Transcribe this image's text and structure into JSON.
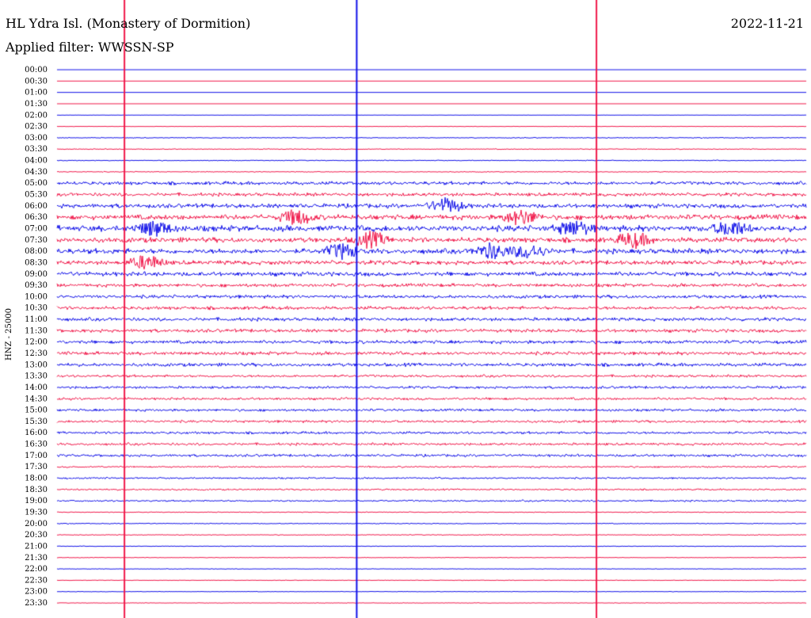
{
  "header": {
    "station": "HL Ydra Isl. (Monastery of Dormition)",
    "date": "2022-11-21",
    "filter": "Applied filter: WWSSN-SP"
  },
  "chart_data": {
    "type": "helicorder",
    "ylabel": "HNZ - 25000",
    "rows": [
      "00:00",
      "00:30",
      "01:00",
      "01:30",
      "02:00",
      "02:30",
      "03:00",
      "03:30",
      "04:00",
      "04:30",
      "05:00",
      "05:30",
      "06:00",
      "06:30",
      "07:00",
      "07:30",
      "08:00",
      "08:30",
      "09:00",
      "09:30",
      "10:00",
      "10:30",
      "11:00",
      "11:30",
      "12:00",
      "12:30",
      "13:00",
      "13:30",
      "14:00",
      "14:30",
      "15:00",
      "15:30",
      "16:00",
      "16:30",
      "17:00",
      "17:30",
      "18:00",
      "18:30",
      "19:00",
      "19:30",
      "20:00",
      "20:30",
      "21:00",
      "21:30",
      "22:00",
      "22:30",
      "23:00",
      "23:30"
    ],
    "colors": [
      "#1010e8",
      "#f0184a"
    ],
    "noise_level": [
      0,
      0,
      0,
      0,
      0.3,
      0.5,
      1,
      1,
      1,
      1,
      4,
      4,
      5,
      6,
      7,
      6,
      6,
      5,
      5,
      4,
      4,
      4,
      4,
      4,
      4,
      4,
      4,
      3,
      3,
      3,
      3,
      3,
      3,
      3,
      3,
      2,
      2,
      2,
      2,
      1,
      1,
      1,
      0.7,
      0.7,
      0.6,
      0.6,
      0.6,
      0.6
    ],
    "events": [
      {
        "row": 13,
        "x": 0.32
      },
      {
        "row": 14,
        "x": 0.13
      },
      {
        "row": 15,
        "x": 0.42
      },
      {
        "row": 16,
        "x": 0.58
      },
      {
        "row": 16,
        "x": 0.38
      },
      {
        "row": 17,
        "x": 0.12
      },
      {
        "row": 13,
        "x": 0.62
      },
      {
        "row": 14,
        "x": 0.9
      },
      {
        "row": 12,
        "x": 0.52
      },
      {
        "row": 15,
        "x": 0.77
      },
      {
        "row": 16,
        "x": 0.63
      },
      {
        "row": 14,
        "x": 0.69
      }
    ],
    "spikes": [
      0.09,
      0.4,
      0.72
    ]
  }
}
